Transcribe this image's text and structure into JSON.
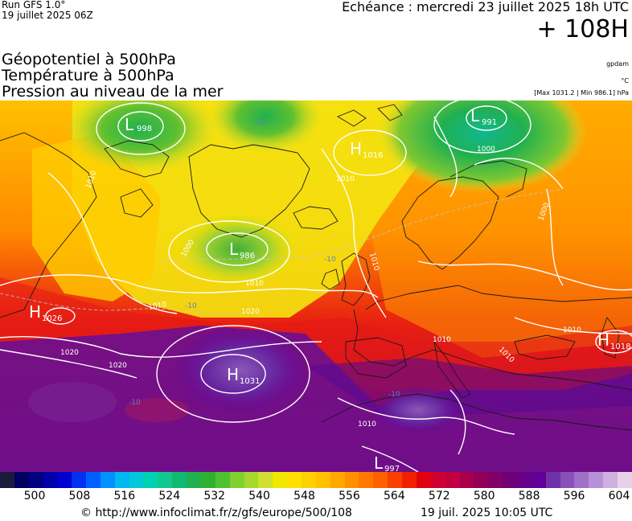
{
  "header": {
    "run": "Run GFS 1.0°",
    "run_date": "19 juillet 2025 06Z",
    "valid": "Echéance : mercredi 23 juillet 2025 18h UTC",
    "lead": "+ 108H"
  },
  "legend_lines": [
    "Géopotentiel à 500hPa",
    "Température à 500hPa",
    "Pression au niveau de la mer"
  ],
  "units": {
    "geopotential": "gpdam",
    "temperature": "°C",
    "pressure_range": "[Max 1031.2 | Min 986.1] hPa"
  },
  "map": {
    "pressure_centers": [
      {
        "type": "L",
        "value": "998"
      },
      {
        "type": "L",
        "value": "991"
      },
      {
        "type": "H",
        "value": "1016"
      },
      {
        "type": "L",
        "value": "986"
      },
      {
        "type": "H",
        "value": "1026"
      },
      {
        "type": "H",
        "value": "1031"
      },
      {
        "type": "H",
        "value": "1018"
      },
      {
        "type": "L",
        "value": "997"
      }
    ],
    "isobar_labels": [
      "1010",
      "1000",
      "1010",
      "1020",
      "1010",
      "1010",
      "1020",
      "1020",
      "1010",
      "1010",
      "1010",
      "1000",
      "1010",
      "1010",
      "1000"
    ],
    "temperature_labels": [
      "-10",
      "-10",
      "-10",
      "-10",
      "-10"
    ],
    "colors": {
      "isobar": "#ffffff",
      "coast": "#1a1a1a"
    }
  },
  "colorbar": {
    "ticks": [
      "500",
      "508",
      "516",
      "524",
      "532",
      "540",
      "548",
      "556",
      "564",
      "572",
      "580",
      "588",
      "596",
      "604"
    ],
    "colors": [
      "#1a1a3a",
      "#000060",
      "#000080",
      "#0000a8",
      "#0000d0",
      "#0030f0",
      "#0060ff",
      "#0090ff",
      "#00b8f0",
      "#00c8d8",
      "#00d0b0",
      "#10c890",
      "#10b870",
      "#20b050",
      "#30b030",
      "#50c030",
      "#80d030",
      "#a8d830",
      "#d0e030",
      "#f0e800",
      "#ffe000",
      "#ffd000",
      "#ffc000",
      "#ffa800",
      "#ff9000",
      "#ff7800",
      "#ff6000",
      "#f84000",
      "#f02000",
      "#e00010",
      "#d00030",
      "#c00040",
      "#a80048",
      "#900058",
      "#800068",
      "#700078",
      "#680088",
      "#600098",
      "#7030a8",
      "#8850b8",
      "#a070c8",
      "#b890d8",
      "#d0b0e0",
      "#e8d0e8"
    ]
  },
  "footer": {
    "source": "© http://www.infoclimat.fr/z/gfs/europe/500/108",
    "stamp": "19 juil. 2025 10:05 UTC"
  }
}
